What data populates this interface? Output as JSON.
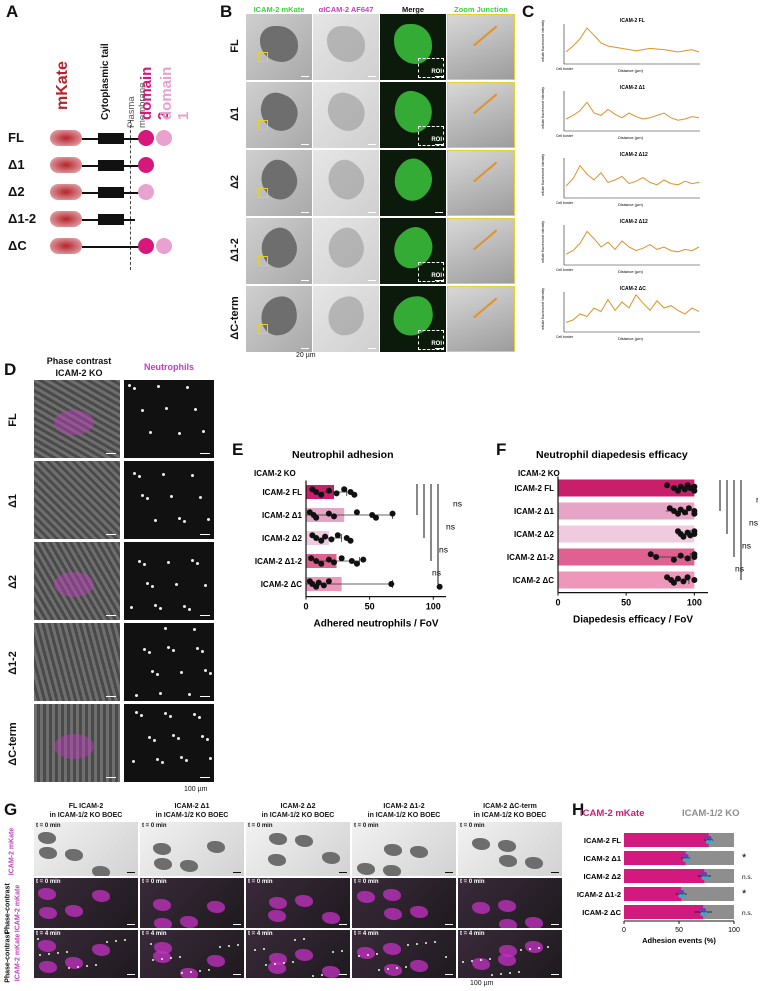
{
  "panels": {
    "A": "A",
    "B": "B",
    "C": "C",
    "D": "D",
    "E": "E",
    "F": "F",
    "G": "G",
    "H": "H"
  },
  "panel_a": {
    "mkate": "mKate",
    "cyto": "Cytoplasmic tail",
    "pm": "Plasma membrane",
    "dom2": "domain 2",
    "dom1": "domain 1",
    "rows": [
      "FL",
      "Δ1",
      "Δ2",
      "Δ1-2",
      "ΔC"
    ],
    "colors": {
      "mkate": "#b5232b",
      "domain2": "#d6187a",
      "domain1": "#e9a2cf"
    }
  },
  "panel_b": {
    "cols": [
      "ICAM-2 mKate",
      "αICAM-2 AF647",
      "Merge",
      "Zoom Junction"
    ],
    "rows": [
      "FL",
      "Δ1",
      "Δ2",
      "Δ1-2",
      "ΔC-term"
    ],
    "roi": "ROI",
    "scale": "20 µm",
    "colors": {
      "green": "#3ecf3e",
      "magenta": "#c23ec2",
      "yellow": "#e3d233"
    }
  },
  "panel_c": {
    "titles": [
      "ICAM-2 FL",
      "ICAM-2 Δ1",
      "ICAM-2 Δ12",
      "ICAM-2 Δ12",
      "ICAM-2 ΔC"
    ],
    "xlabel": "Distance (µm)",
    "ylabel": "mKate fluorescent intensity",
    "cellborder": "Cell border",
    "profiles": [
      [
        20,
        30,
        42,
        60,
        48,
        35,
        30,
        28,
        26,
        24,
        22,
        24,
        26,
        25,
        24,
        22,
        20,
        22,
        24,
        20
      ],
      [
        20,
        26,
        34,
        48,
        30,
        26,
        36,
        28,
        22,
        30,
        24,
        20,
        22,
        26,
        30,
        22,
        18,
        20,
        24,
        22
      ],
      [
        20,
        32,
        54,
        40,
        30,
        42,
        26,
        30,
        36,
        24,
        28,
        34,
        26,
        22,
        30,
        24,
        22,
        28,
        24,
        26
      ],
      [
        18,
        24,
        36,
        56,
        44,
        30,
        38,
        26,
        40,
        30,
        24,
        28,
        34,
        26,
        30,
        24,
        22,
        26,
        24,
        30
      ],
      [
        16,
        20,
        30,
        26,
        40,
        34,
        54,
        36,
        50,
        40,
        62,
        48,
        36,
        52,
        40,
        44,
        36,
        30,
        40,
        34
      ]
    ]
  },
  "panel_d": {
    "col1a": "Phase contrast",
    "col1b": "ICAM-2 KO",
    "col2": "Neutrophils",
    "rows": [
      "FL",
      "Δ1",
      "Δ2",
      "Δ1-2",
      "ΔC-term"
    ],
    "scale": "100 µm"
  },
  "chart_data": [
    {
      "type": "bar",
      "title": "Neutrophil adhesion",
      "subtitle": "ICAM-2 KO",
      "categories": [
        "ICAM-2 FL",
        "ICAM-2 Δ1",
        "ICAM-2 Δ2",
        "ICAM-2 Δ1-2",
        "ICAM-2 ΔC"
      ],
      "values": [
        22,
        30,
        18,
        24,
        28
      ],
      "errors": [
        10,
        38,
        10,
        18,
        40
      ],
      "points": [
        [
          5,
          8,
          12,
          18,
          24,
          30,
          35,
          38
        ],
        [
          3,
          6,
          8,
          18,
          22,
          40,
          52,
          55,
          68
        ],
        [
          5,
          8,
          12,
          15,
          20,
          25,
          32,
          35
        ],
        [
          4,
          8,
          12,
          18,
          22,
          28,
          36,
          40,
          45
        ],
        [
          3,
          5,
          8,
          10,
          14,
          18,
          67,
          105
        ]
      ],
      "xlabel": "Adhered neutrophils / FoV",
      "xlim": [
        0,
        110
      ],
      "xticks": [
        0,
        50,
        100
      ],
      "significance": [
        "ns",
        "ns",
        "ns",
        "ns"
      ],
      "colors": [
        "#c91f6a",
        "#e6a5c6",
        "#f0cade",
        "#e0608f",
        "#ef97bb"
      ]
    },
    {
      "type": "bar",
      "title": "Neutrophil diapedesis efficacy",
      "subtitle": "ICAM-2 KO",
      "categories": [
        "ICAM-2 FL",
        "ICAM-2 Δ1",
        "ICAM-2 Δ2",
        "ICAM-2 Δ1-2",
        "ICAM-2 ΔC"
      ],
      "values": [
        90,
        87,
        92,
        85,
        88
      ],
      "errors": [
        8,
        8,
        5,
        12,
        8
      ],
      "points": [
        [
          80,
          85,
          88,
          90,
          93,
          95,
          97,
          100,
          100
        ],
        [
          82,
          85,
          88,
          90,
          93,
          96,
          100,
          100
        ],
        [
          88,
          90,
          92,
          95,
          97,
          100,
          100
        ],
        [
          68,
          72,
          85,
          90,
          95,
          100,
          100
        ],
        [
          80,
          83,
          85,
          88,
          92,
          95,
          100
        ]
      ],
      "xlabel": "Diapedesis efficacy / FoV",
      "xlim": [
        0,
        110
      ],
      "xticks": [
        0,
        50,
        100
      ],
      "significance": [
        "ns",
        "ns",
        "ns",
        "ns"
      ],
      "colors": [
        "#c91f6a",
        "#e6a5c6",
        "#f0cade",
        "#e0608f",
        "#ef97bb"
      ]
    },
    {
      "type": "bar",
      "legend": [
        "ICAM-2 mKate",
        "ICAM-1/2 KO"
      ],
      "categories": [
        "ICAM-2 FL",
        "ICAM-2 Δ1",
        "ICAM-2 Δ2",
        "ICAM-2 Δ1-2",
        "ICAM-2 ΔC"
      ],
      "values": [
        77,
        56,
        73,
        52,
        72
      ],
      "errors": [
        4,
        4,
        6,
        5,
        8
      ],
      "xlabel": "Adhesion events (%)",
      "xlim": [
        0,
        100
      ],
      "xticks": [
        0,
        50,
        100
      ],
      "significance": [
        "",
        "*",
        "n.s.",
        "*",
        "n.s."
      ],
      "colors": {
        "mkate": "#d4197e",
        "ko": "#8e8e8e"
      }
    }
  ],
  "panel_g": {
    "cols": [
      [
        "FL ICAM-2",
        "in ICAM-1/2 KO BOEC"
      ],
      [
        "ICAM-2 Δ1",
        "in ICAM-1/2 KO BOEC"
      ],
      [
        "ICAM-2 Δ2",
        "in ICAM-1/2 KO BOEC"
      ],
      [
        "ICAM-2 Δ1-2",
        "in ICAM-1/2 KO BOEC"
      ],
      [
        "ICAM-2 ΔC-term",
        "in ICAM-1/2 KO BOEC"
      ]
    ],
    "row1": "ICAM-2 mKate",
    "row2a": "Phase-contrast",
    "row2b": "ICAM-2 mKate",
    "t0": "t = 0 min",
    "t4": "t = 4 min",
    "scale": "100 µm"
  }
}
